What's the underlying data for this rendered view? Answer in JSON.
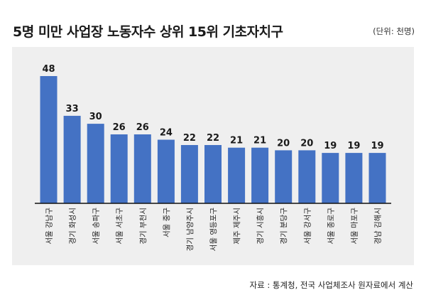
{
  "header": {
    "title": "5명 미만 사업장 노동자수 상위 15위 기초자치구",
    "unit": "(단위: 천명)"
  },
  "footer": {
    "source": "자료 : 통계청, 전국 사업체조사 원자료에서 계산"
  },
  "colors": {
    "bar": "#4472c4",
    "panel": "#efefef",
    "axis": "#111111"
  },
  "chart_data": {
    "type": "bar",
    "categories": [
      "서울 강남구",
      "경기 화성시",
      "서울 송파구",
      "서울 서초구",
      "경기 부천시",
      "서울 중구",
      "경기 남양주시",
      "서울 영등포구",
      "제주 제주시",
      "경기 시흥시",
      "경기 분당구",
      "서울 강서구",
      "서울 종로구",
      "서울 마포구",
      "경남 김해시"
    ],
    "values": [
      48,
      33,
      30,
      26,
      26,
      24,
      22,
      22,
      21,
      21,
      20,
      20,
      19,
      19,
      19
    ],
    "title": "5명 미만 사업장 노동자수 상위 15위 기초자치구",
    "xlabel": "",
    "ylabel": "",
    "ylim": [
      0,
      48
    ],
    "grid": false,
    "legend": "none"
  }
}
